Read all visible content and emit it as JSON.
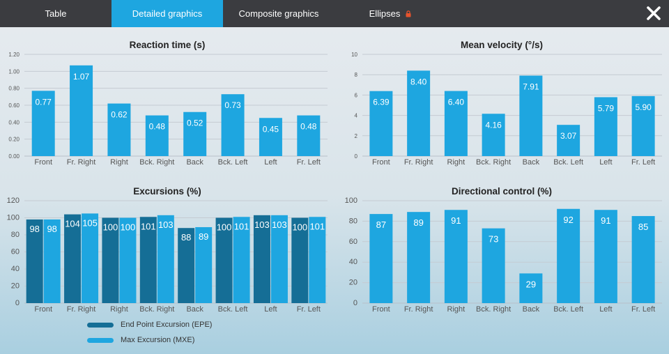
{
  "tabs": [
    {
      "label": "Table"
    },
    {
      "label": "Detailed graphics"
    },
    {
      "label": "Composite graphics"
    },
    {
      "label": "Ellipses"
    }
  ],
  "colors": {
    "bar": "#1ea6e0",
    "epe": "#156e96",
    "mxe": "#1ea6e0",
    "grid": "#c4cbd2",
    "active_tab": "#1ea6e0",
    "lock": "#e8532c"
  },
  "legend": {
    "epe_label": "End Point Excursion (EPE)",
    "mxe_label": "Max Excursion (MXE)"
  },
  "chart_data": [
    {
      "type": "bar",
      "title": "Reaction time (s)",
      "categories": [
        "Front",
        "Fr. Right",
        "Right",
        "Bck. Right",
        "Back",
        "Bck. Left",
        "Left",
        "Fr. Left"
      ],
      "values": [
        0.77,
        1.07,
        0.62,
        0.48,
        0.52,
        0.73,
        0.45,
        0.48
      ],
      "value_labels": [
        "0.77",
        "1.07",
        "0.62",
        "0.48",
        "0.52",
        "0.73",
        "0.45",
        "0.48"
      ],
      "ylim": [
        0,
        1.2
      ],
      "yticks": [
        "0.00",
        "0.20",
        "0.40",
        "0.60",
        "0.80",
        "1.00",
        "1.20"
      ],
      "grid": true
    },
    {
      "type": "bar",
      "title": "Mean velocity (°/s)",
      "categories": [
        "Front",
        "Fr. Right",
        "Right",
        "Bck. Right",
        "Back",
        "Bck. Left",
        "Left",
        "Fr. Left"
      ],
      "values": [
        6.39,
        8.4,
        6.4,
        4.16,
        7.91,
        3.07,
        5.79,
        5.9
      ],
      "value_labels": [
        "6.39",
        "8.40",
        "6.40",
        "4.16",
        "7.91",
        "3.07",
        "5.79",
        "5.90"
      ],
      "ylim": [
        0,
        10
      ],
      "yticks": [
        "0",
        "2",
        "4",
        "6",
        "8",
        "10"
      ],
      "grid": true
    },
    {
      "type": "bar",
      "title": "Excursions (%)",
      "categories": [
        "Front",
        "Fr. Right",
        "Right",
        "Bck. Right",
        "Back",
        "Bck. Left",
        "Left",
        "Fr. Left"
      ],
      "series": [
        {
          "name": "End Point Excursion (EPE)",
          "values": [
            98,
            104,
            100,
            101,
            88,
            100,
            103,
            100
          ]
        },
        {
          "name": "Max Excursion (MXE)",
          "values": [
            98,
            105,
            100,
            103,
            89,
            101,
            103,
            101
          ]
        }
      ],
      "ylim": [
        0,
        120
      ],
      "yticks": [
        "0",
        "20",
        "40",
        "60",
        "80",
        "100",
        "120"
      ],
      "grid": true,
      "legend": "bottom"
    },
    {
      "type": "bar",
      "title": "Directional control (%)",
      "categories": [
        "Front",
        "Fr. Right",
        "Right",
        "Bck. Right",
        "Back",
        "Bck. Left",
        "Left",
        "Fr. Left"
      ],
      "values": [
        87,
        89,
        91,
        73,
        29,
        92,
        91,
        85
      ],
      "value_labels": [
        "87",
        "89",
        "91",
        "73",
        "29",
        "92",
        "91",
        "85"
      ],
      "ylim": [
        0,
        100
      ],
      "yticks": [
        "0",
        "20",
        "40",
        "60",
        "80",
        "100"
      ],
      "grid": true
    }
  ]
}
